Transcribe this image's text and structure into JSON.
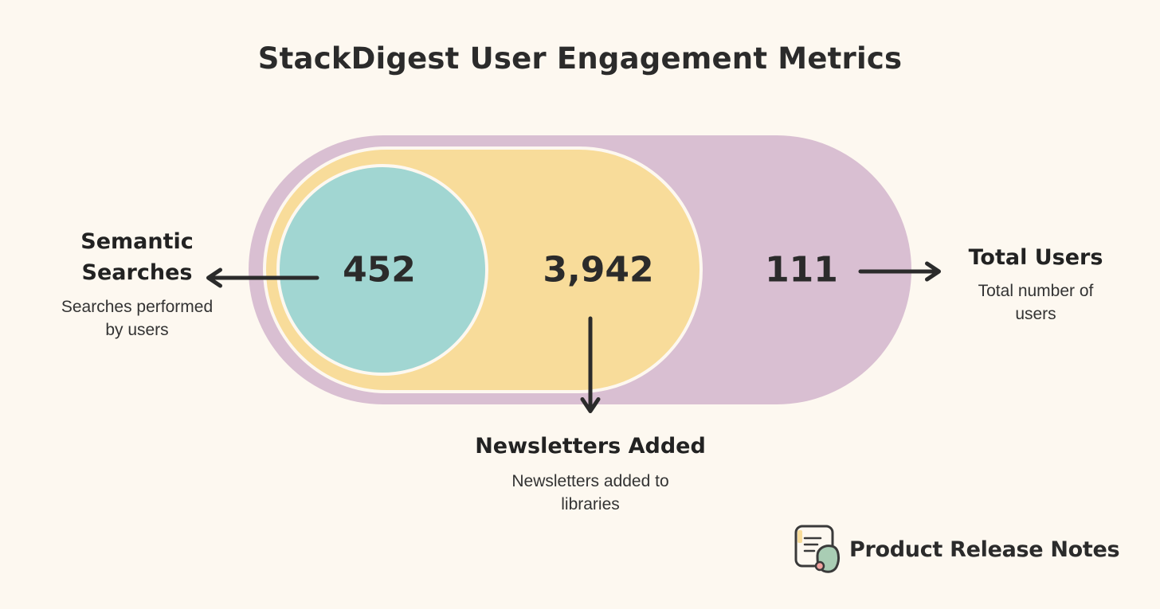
{
  "title": "StackDigest User Engagement Metrics",
  "metrics": {
    "searches": {
      "value": "452",
      "title_line1": "Semantic",
      "title_line2": "Searches",
      "desc_line1": "Searches performed",
      "desc_line2": "by users"
    },
    "newsletters": {
      "value": "3,942",
      "title": "Newsletters Added",
      "desc_line1": "Newsletters added to",
      "desc_line2": "libraries"
    },
    "users": {
      "value": "111",
      "title": "Total Users",
      "desc_line1": "Total number of",
      "desc_line2": "users"
    }
  },
  "brand": {
    "name": "Product Release Notes",
    "icon": "notes-icon"
  },
  "colors": {
    "background": "#fdf8f0",
    "outer": "#d9bfd2",
    "middle": "#f8dc9a",
    "inner": "#a1d6d2",
    "text": "#2b2b2b"
  }
}
